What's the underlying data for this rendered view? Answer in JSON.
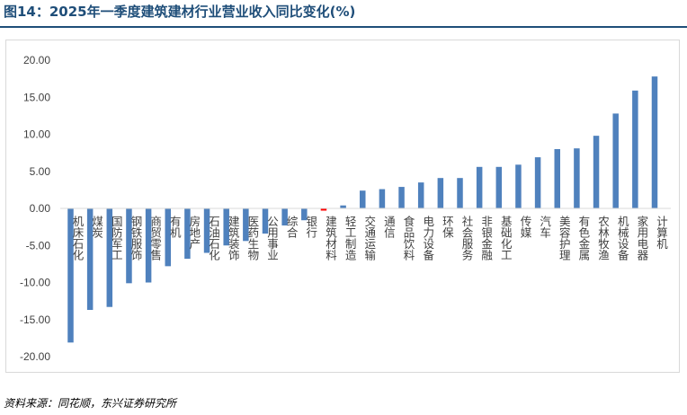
{
  "title": "图14：2025年一季度建筑建材行业营业收入同比变化(%)",
  "source": "资料来源：同花顺，东兴证券研究所",
  "colors": {
    "bar": "#4F81BD",
    "highlight": "#FF0000",
    "title": "#1F4E79"
  },
  "chart_data": {
    "type": "bar",
    "ylim": [
      -20,
      20
    ],
    "yticks": [
      "20.00",
      "15.00",
      "10.00",
      "5.00",
      "0.00",
      "-5.00",
      "-10.00",
      "-15.00",
      "-20.00"
    ],
    "categories": [
      "机床石化",
      "煤炭",
      "国防军工",
      "钢铁服饰",
      "商贸零售",
      "有机",
      "房地产",
      "石油石化",
      "建筑装饰",
      "医药生物",
      "公用事业",
      "综合",
      "银行",
      "建筑材料",
      "轻工制造",
      "交通运输",
      "通信",
      "食品饮料",
      "电力设备",
      "环保",
      "社会服务",
      "非银金融",
      "基础化工",
      "传媒",
      "汽车",
      "美容护理",
      "有色金属",
      "农林牧渔",
      "机械设备",
      "家用电器",
      "计算机"
    ],
    "values": [
      -18.1,
      -13.7,
      -13.3,
      -10.1,
      -10.0,
      -7.8,
      -6.8,
      -6.0,
      -5.0,
      -4.4,
      -3.4,
      -2.3,
      -1.6,
      -0.3,
      0.4,
      2.4,
      2.6,
      2.9,
      3.5,
      4.1,
      4.1,
      5.6,
      5.6,
      5.9,
      6.9,
      8.0,
      8.1,
      9.8,
      12.8,
      15.9,
      17.8
    ],
    "highlight_category": "建筑材料",
    "grid": false,
    "legend": "none"
  }
}
